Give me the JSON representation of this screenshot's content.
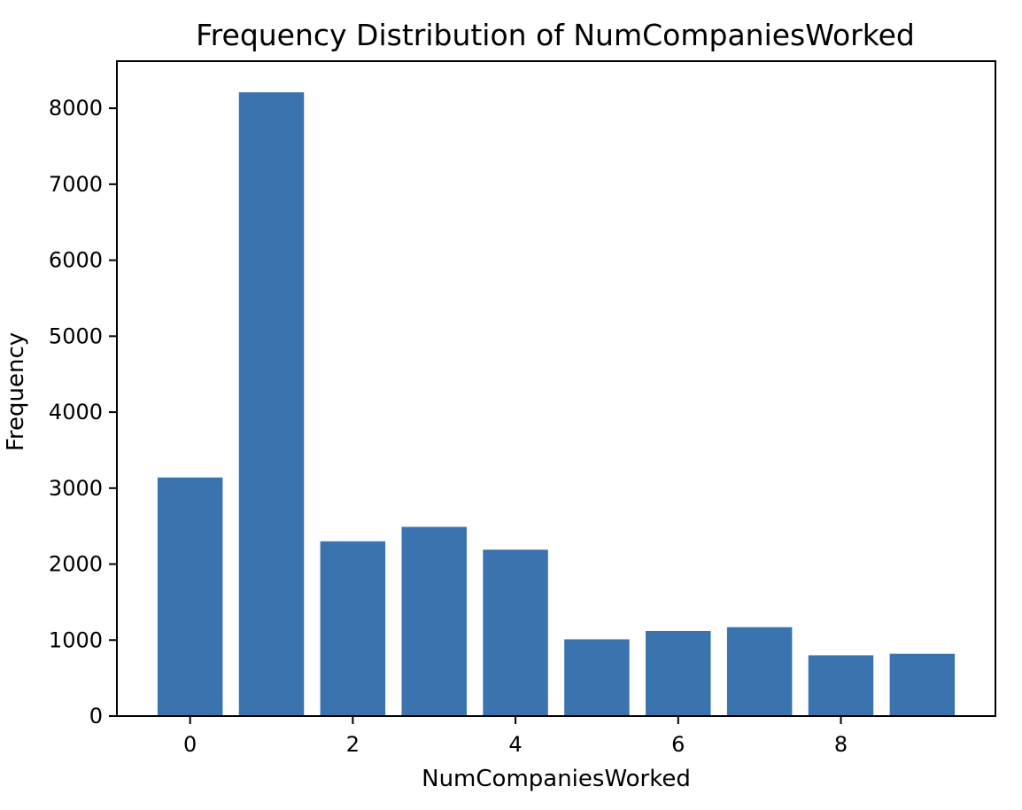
{
  "chart_data": {
    "type": "bar",
    "title": "Frequency Distribution of NumCompaniesWorked",
    "xlabel": "NumCompaniesWorked",
    "ylabel": "Frequency",
    "categories": [
      0,
      1,
      2,
      3,
      4,
      5,
      6,
      7,
      8,
      9
    ],
    "values": [
      3140,
      8210,
      2300,
      2490,
      2190,
      1010,
      1120,
      1170,
      800,
      820
    ],
    "xticks": [
      "0",
      "2",
      "4",
      "6",
      "8"
    ],
    "xtick_values": [
      0,
      2,
      4,
      6,
      8
    ],
    "yticks": [
      "0",
      "1000",
      "2000",
      "3000",
      "4000",
      "5000",
      "6000",
      "7000",
      "8000"
    ],
    "ytick_values": [
      0,
      1000,
      2000,
      3000,
      4000,
      5000,
      6000,
      7000,
      8000
    ],
    "xlim": [
      -0.9,
      9.9
    ],
    "ylim": [
      0,
      8620
    ],
    "bar_color": "#3a73ae",
    "grid": false,
    "legend": false
  }
}
